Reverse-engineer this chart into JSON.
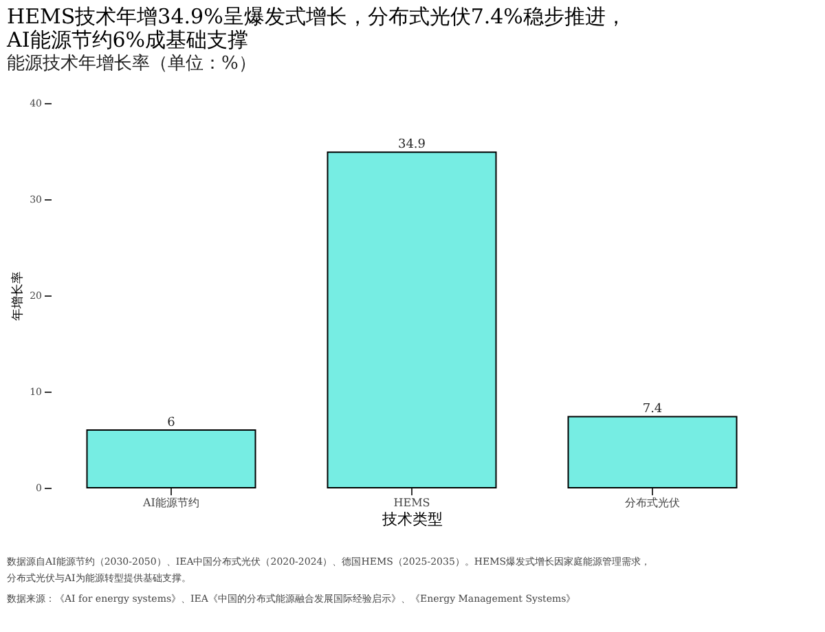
{
  "chart_data": {
    "type": "bar",
    "title": [
      "HEMS技术年增34.9%呈爆发式增长，分布式光伏7.4%稳步推进，",
      "AI能源节约6%成基础支撑"
    ],
    "subtitle": "能源技术年增长率（单位：%）",
    "xlabel": "技术类型",
    "ylabel": "年增长率",
    "categories": [
      "AI能源节约",
      "HEMS",
      "分布式光伏"
    ],
    "values": [
      6,
      34.9,
      7.4
    ],
    "color": "#76ede3",
    "data_labels": true,
    "ylim": [
      0,
      40
    ],
    "yticks": [
      0,
      10,
      20,
      30,
      40
    ],
    "grid": false,
    "annotations": [
      "数据源自AI能源节约（2030-2050）、IEA中国分布式光伏（2020-2024）、德国HEMS（2025-2035）。HEMS爆发式增长因家庭能源管理需求，",
      "分布式光伏与AI为能源转型提供基础支撑。",
      "数据来源：《AI for energy systems》、IEA《中国的分布式能源融合发展国际经验启示》、《Energy Management Systems》"
    ]
  }
}
